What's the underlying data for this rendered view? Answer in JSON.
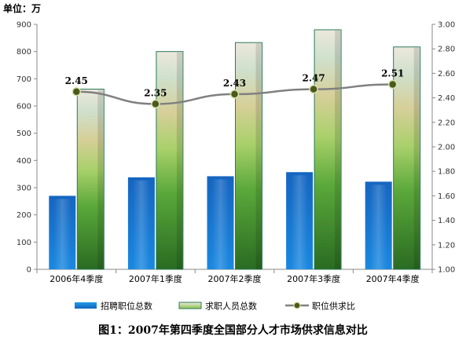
{
  "unit_label": "单位：万",
  "caption": "图1：2007年第四季度全国部分人才市场供求信息对比",
  "chart_data": {
    "type": "bar",
    "categories": [
      "2006年4季度",
      "2007年1季度",
      "2007年2季度",
      "2007年3季度",
      "2007年4季度"
    ],
    "series": [
      {
        "name": "招聘职位总数",
        "kind": "bar",
        "axis": "left",
        "values": [
          270,
          338,
          342,
          357,
          322
        ]
      },
      {
        "name": "求职人员总数",
        "kind": "bar",
        "axis": "left",
        "values": [
          662,
          800,
          833,
          880,
          817
        ]
      },
      {
        "name": "职位供求比",
        "kind": "line",
        "axis": "right",
        "values": [
          2.45,
          2.35,
          2.43,
          2.47,
          2.51
        ]
      }
    ],
    "data_labels": [
      "2.45",
      "2.35",
      "2.43",
      "2.47",
      "2.51"
    ],
    "y_left": {
      "min": 0,
      "max": 900,
      "step": 100,
      "ticks": [
        "0",
        "100",
        "200",
        "300",
        "400",
        "500",
        "600",
        "700",
        "800",
        "900"
      ]
    },
    "y_right": {
      "min": 1.0,
      "max": 3.0,
      "step": 0.2,
      "ticks": [
        "1.00",
        "1.20",
        "1.40",
        "1.60",
        "1.80",
        "2.00",
        "2.20",
        "2.40",
        "2.60",
        "2.80",
        "3.00"
      ]
    },
    "grid": false,
    "legend_position": "bottom",
    "colors": {
      "recruit_dark": "#1565c0",
      "recruit_light": "#1e9be8",
      "applicant_dark": "#2e7d32",
      "applicant_mid": "#8bc34a",
      "applicant_light": "#d8e2c0",
      "applicant_top": "#ece8dc",
      "line": "#808080",
      "marker": "#4a5a1a"
    }
  }
}
